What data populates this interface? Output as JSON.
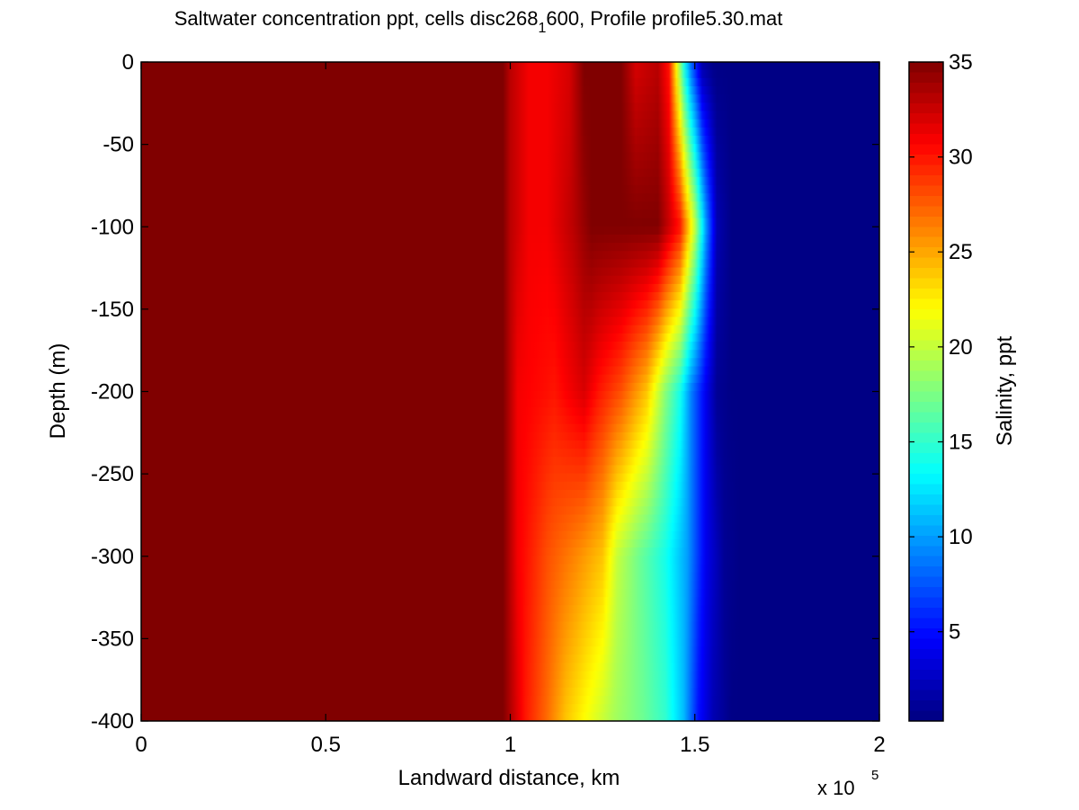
{
  "chart_data": {
    "type": "heatmap",
    "title_parts": {
      "before": "Saltwater concentration ppt, cells disc268",
      "subscript": "1",
      "after": "600, Profile profile5.30.mat"
    },
    "xlabel": "Landward distance, km",
    "ylabel": "Depth (m)",
    "x_multiplier": {
      "base": "x 10",
      "exponent": "5"
    },
    "xlim": [
      0,
      2
    ],
    "ylim": [
      -400,
      0
    ],
    "x_ticks": [
      "0",
      "0.5",
      "1",
      "1.5",
      "2"
    ],
    "y_ticks": [
      "0",
      "-50",
      "-100",
      "-150",
      "-200",
      "-250",
      "-300",
      "-350",
      "-400"
    ],
    "colorbar": {
      "label": "Salinity, ppt",
      "range": [
        0.3,
        35
      ],
      "ticks": [
        "5",
        "10",
        "15",
        "20",
        "25",
        "30",
        "35"
      ],
      "colormap": "jet"
    },
    "depth_profiles": [
      {
        "depth": 0,
        "points": [
          [
            0,
            35
          ],
          [
            0.98,
            35
          ],
          [
            1.0,
            33
          ],
          [
            1.05,
            31
          ],
          [
            1.1,
            31
          ],
          [
            1.16,
            32
          ],
          [
            1.2,
            35
          ],
          [
            1.3,
            35
          ],
          [
            1.34,
            32
          ],
          [
            1.4,
            33
          ],
          [
            1.43,
            30
          ],
          [
            1.45,
            22
          ],
          [
            1.47,
            14
          ],
          [
            1.49,
            8
          ],
          [
            1.52,
            1.5
          ],
          [
            1.55,
            0.5
          ],
          [
            2.0,
            0.5
          ]
        ]
      },
      {
        "depth": -100,
        "points": [
          [
            0,
            35
          ],
          [
            0.98,
            35
          ],
          [
            1.0,
            33
          ],
          [
            1.05,
            31
          ],
          [
            1.1,
            31
          ],
          [
            1.17,
            33
          ],
          [
            1.22,
            35
          ],
          [
            1.4,
            35
          ],
          [
            1.46,
            30
          ],
          [
            1.5,
            20
          ],
          [
            1.53,
            10
          ],
          [
            1.56,
            2
          ],
          [
            1.6,
            0.5
          ],
          [
            2.0,
            0.5
          ]
        ]
      },
      {
        "depth": -200,
        "points": [
          [
            0,
            35
          ],
          [
            0.98,
            35
          ],
          [
            1.02,
            31
          ],
          [
            1.12,
            30
          ],
          [
            1.2,
            32
          ],
          [
            1.24,
            30
          ],
          [
            1.3,
            28
          ],
          [
            1.37,
            24
          ],
          [
            1.42,
            18
          ],
          [
            1.46,
            14
          ],
          [
            1.49,
            9
          ],
          [
            1.53,
            4
          ],
          [
            1.56,
            1
          ],
          [
            1.6,
            0.5
          ],
          [
            2.0,
            0.5
          ]
        ]
      },
      {
        "depth": -300,
        "points": [
          [
            0,
            35
          ],
          [
            0.98,
            35
          ],
          [
            1.02,
            31
          ],
          [
            1.1,
            28
          ],
          [
            1.18,
            26
          ],
          [
            1.25,
            24
          ],
          [
            1.29,
            20
          ],
          [
            1.35,
            17
          ],
          [
            1.42,
            14
          ],
          [
            1.48,
            10
          ],
          [
            1.53,
            4
          ],
          [
            1.58,
            1
          ],
          [
            1.62,
            0.5
          ],
          [
            2.0,
            0.5
          ]
        ]
      },
      {
        "depth": -400,
        "points": [
          [
            0,
            35
          ],
          [
            0.98,
            35
          ],
          [
            1.04,
            30
          ],
          [
            1.1,
            27
          ],
          [
            1.15,
            24
          ],
          [
            1.2,
            22
          ],
          [
            1.28,
            19
          ],
          [
            1.36,
            17
          ],
          [
            1.42,
            15
          ],
          [
            1.47,
            11
          ],
          [
            1.51,
            5
          ],
          [
            1.55,
            2
          ],
          [
            1.6,
            0.5
          ],
          [
            2.0,
            0.5
          ]
        ]
      }
    ]
  }
}
